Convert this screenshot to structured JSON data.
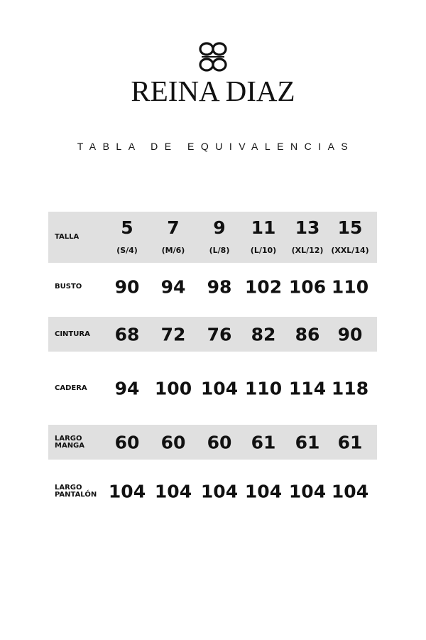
{
  "brand": {
    "name": "REINA DIAZ",
    "logo_icon": "knot-emblem-icon"
  },
  "subtitle": "TABLA DE EQUIVALENCIAS",
  "colors": {
    "row_shade": "#e0e0e0",
    "text": "#111111"
  },
  "table": {
    "header": {
      "label": "TALLA",
      "sizes": [
        "5",
        "7",
        "9",
        "11",
        "13",
        "15"
      ],
      "equivalents": [
        "(S/4)",
        "(M/6)",
        "(L/8)",
        "(L/10)",
        "(XL/12)",
        "(XXL/14)"
      ]
    },
    "rows": [
      {
        "label_line1": "BUSTO",
        "label_line2": "",
        "values": [
          "90",
          "94",
          "98",
          "102",
          "106",
          "110"
        ]
      },
      {
        "label_line1": "CINTURA",
        "label_line2": "",
        "values": [
          "68",
          "72",
          "76",
          "82",
          "86",
          "90"
        ]
      },
      {
        "label_line1": "CADERA",
        "label_line2": "",
        "values": [
          "94",
          "100",
          "104",
          "110",
          "114",
          "118"
        ]
      },
      {
        "label_line1": "LARGO",
        "label_line2": "MANGA",
        "values": [
          "60",
          "60",
          "60",
          "61",
          "61",
          "61"
        ]
      },
      {
        "label_line1": "LARGO",
        "label_line2": "PANTALÓN",
        "values": [
          "104",
          "104",
          "104",
          "104",
          "104",
          "104"
        ]
      }
    ]
  }
}
